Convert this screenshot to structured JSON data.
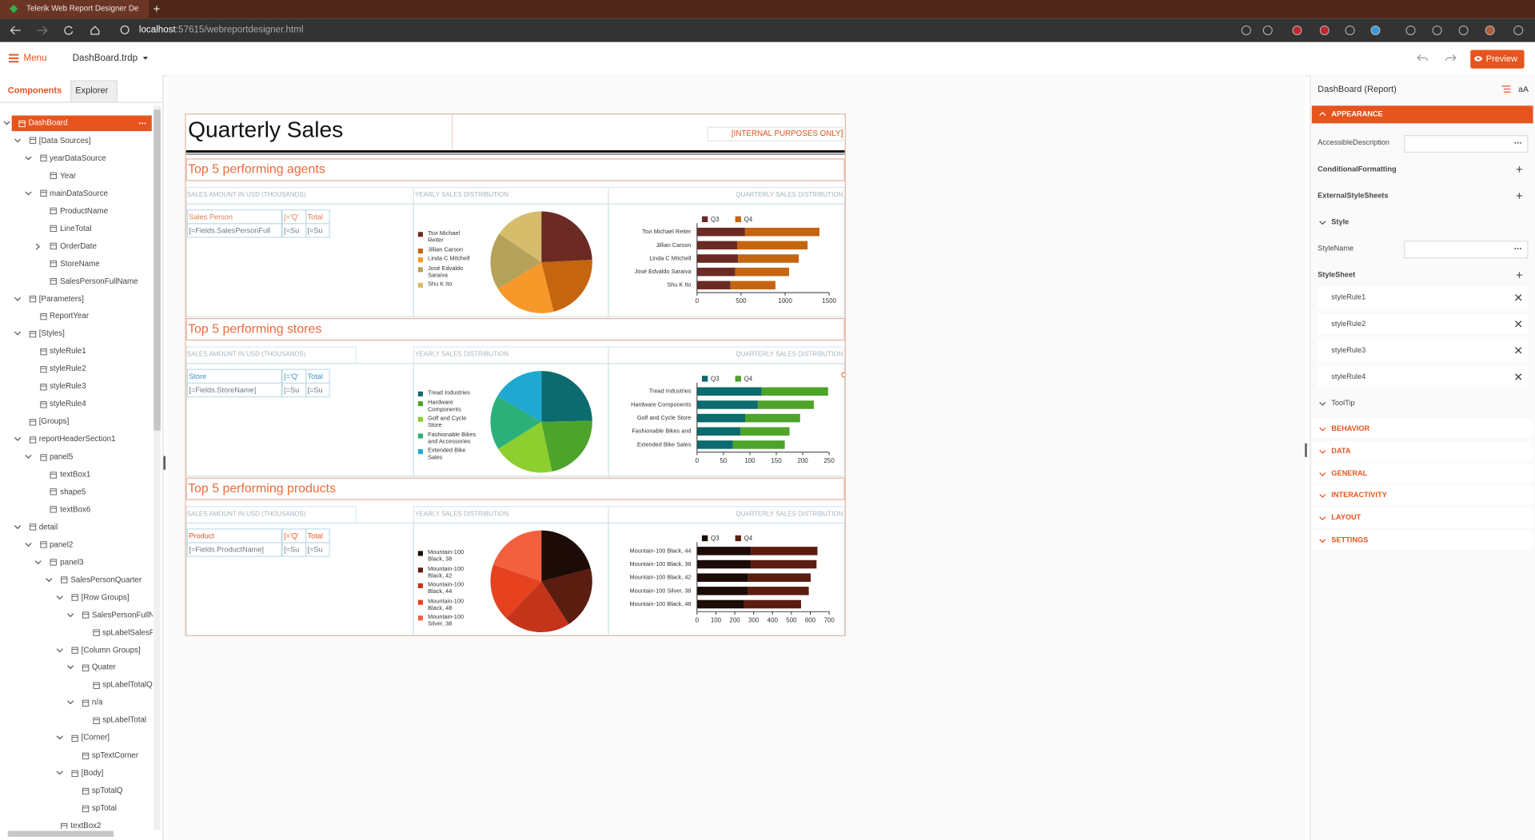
{
  "browser": {
    "tab_title": "Telerik Web Report Designer De",
    "url_host": "localhost",
    "url_path": ":57615/webreportdesigner.html"
  },
  "toolbar": {
    "menu": "Menu",
    "document": "DashBoard.trdp",
    "preview": "Preview"
  },
  "explorer": {
    "tabs": [
      "Components",
      "Explorer"
    ],
    "tree": [
      {
        "label": "DashBoard",
        "children": [
          {
            "label": "[Data Sources]",
            "children": [
              {
                "label": "yearDataSource",
                "children": [
                  {
                    "label": "Year"
                  }
                ]
              },
              {
                "label": "mainDataSource",
                "children": [
                  {
                    "label": "ProductName"
                  },
                  {
                    "label": "LineTotal"
                  },
                  {
                    "label": "OrderDate",
                    "collapsed": true
                  },
                  {
                    "label": "StoreName"
                  },
                  {
                    "label": "SalesPersonFullName"
                  }
                ]
              }
            ]
          },
          {
            "label": "[Parameters]",
            "children": [
              {
                "label": "ReportYear"
              }
            ]
          },
          {
            "label": "[Styles]",
            "children": [
              {
                "label": "styleRule1"
              },
              {
                "label": "styleRule2"
              },
              {
                "label": "styleRule3"
              },
              {
                "label": "styleRule4"
              }
            ]
          },
          {
            "label": "[Groups]"
          },
          {
            "label": "reportHeaderSection1",
            "children": [
              {
                "label": "panel5",
                "children": [
                  {
                    "label": "textBox1"
                  },
                  {
                    "label": "shape5"
                  },
                  {
                    "label": "textBox6"
                  }
                ]
              }
            ]
          },
          {
            "label": "detail",
            "children": [
              {
                "label": "panel2",
                "children": [
                  {
                    "label": "panel3",
                    "children": [
                      {
                        "label": "SalesPersonQuarter",
                        "children": [
                          {
                            "label": "[Row Groups]",
                            "children": [
                              {
                                "label": "SalesPersonFullN",
                                "children": [
                                  {
                                    "label": "spLabelSalesF"
                                  }
                                ]
                              }
                            ]
                          },
                          {
                            "label": "[Column Groups]",
                            "children": [
                              {
                                "label": "Quater",
                                "children": [
                                  {
                                    "label": "spLabelTotalQ"
                                  }
                                ]
                              },
                              {
                                "label": "n/a",
                                "children": [
                                  {
                                    "label": "spLabelTotal"
                                  }
                                ]
                              }
                            ]
                          },
                          {
                            "label": "[Corner]",
                            "children": [
                              {
                                "label": "spTextCorner"
                              }
                            ]
                          },
                          {
                            "label": "[Body]",
                            "children": [
                              {
                                "label": "spTotalQ"
                              },
                              {
                                "label": "spTotal"
                              }
                            ]
                          }
                        ]
                      },
                      {
                        "label": "textBox2"
                      }
                    ]
                  }
                ]
              }
            ]
          }
        ]
      }
    ]
  },
  "report": {
    "title": "Quarterly Sales",
    "notice": "[INTERNAL PURPOSES ONLY]",
    "sections": [
      {
        "heading": "Top 5 performing agents",
        "columns": [
          "SALES AMOUNT IN USD (THOUSANDS)",
          "YEARLY SALES DISTRIBUTION",
          "QUARTERLY SALES DISTRIBUTION"
        ],
        "table": [
          [
            "Sales Person",
            "[='Q'",
            "Total"
          ],
          [
            "[=Fields.SalesPersonFull",
            "[=Su",
            "[=Su"
          ]
        ],
        "pie": {
          "type": "pie",
          "categories": [
            "Tsvi Michael Reiter",
            "Jillian  Carson",
            "Linda C Mitchell",
            "José Edvaldo Saraiva",
            "Shu K Ito"
          ],
          "values": [
            1390,
            1255,
            1155,
            1045,
            890
          ],
          "colors": [
            "#6b2a24",
            "#c5650f",
            "#f7982a",
            "#b4a25a",
            "#d6bd6c"
          ]
        },
        "bar": {
          "type": "bar",
          "categories": [
            "Tsvi Michael Reiter",
            "Jillian  Carson",
            "Linda C Mitchell",
            "José Edvaldo Saraiva",
            "Shu K Ito"
          ],
          "series": [
            {
              "name": "Q3",
              "color": "#6b2a24",
              "values": [
                545,
                455,
                465,
                435,
                380
              ]
            },
            {
              "name": "Q4",
              "color": "#c5650f",
              "values": [
                845,
                800,
                690,
                610,
                510
              ]
            }
          ],
          "xlim": [
            0,
            1500
          ],
          "xticks": [
            0,
            500,
            1000,
            1500
          ]
        }
      },
      {
        "heading": "Top 5 performing stores",
        "columns": [
          "SALES AMOUNT IN USD (THOUSANDS)",
          "YEARLY SALES DISTRIBUTION",
          "QUARTERLY SALES DISTRIBUTION"
        ],
        "table": [
          [
            "Store",
            "[='Q'",
            "Total"
          ],
          [
            "[=Fields.StoreName]",
            "[=Su",
            "[=Su"
          ]
        ],
        "pie": {
          "type": "pie",
          "categories": [
            "Tread Industries",
            "Hardware Components",
            "Golf and Cycle Store",
            "Fashionable Bikes and Accessories",
            "Extended Bike Sales"
          ],
          "values": [
            248,
            221,
            195,
            175,
            166
          ],
          "colors": [
            "#0b6b6e",
            "#4ea42a",
            "#8dcf2f",
            "#2bb07a",
            "#1fa9d2"
          ]
        },
        "bar": {
          "type": "bar",
          "categories": [
            "Tread Industries",
            "Hardware Components",
            "Golf and Cycle Store",
            "Fashionable Bikes and",
            "Extended Bike Sales"
          ],
          "series": [
            {
              "name": "Q3",
              "color": "#0b6b6e",
              "values": [
                122,
                115,
                91,
                82,
                68
              ]
            },
            {
              "name": "Q4",
              "color": "#4ea42a",
              "values": [
                126,
                106,
                104,
                93,
                98
              ]
            }
          ],
          "xlim": [
            0,
            250
          ],
          "xticks": [
            0,
            50,
            100,
            150,
            200,
            250
          ]
        }
      },
      {
        "heading": "Top 5 performing products",
        "columns": [
          "SALES AMOUNT IN USD (THOUSANDS)",
          "YEARLY SALES DISTRIBUTION",
          "QUARTERLY SALES DISTRIBUTION"
        ],
        "table": [
          [
            "Product",
            "[='Q'",
            "Total"
          ],
          [
            "[=Fields.ProductName]",
            "[=Su",
            "[=Su"
          ]
        ],
        "pie": {
          "type": "pie",
          "categories": [
            "Mountain-100 Black, 38",
            "Mountain-100 Black, 42",
            "Mountain-100 Black, 44",
            "Mountain-100 Black, 48",
            "Mountain-100 Silver, 38"
          ],
          "values": [
            633,
            602,
            638,
            551,
            592
          ],
          "colors": [
            "#1c0b07",
            "#5b1d10",
            "#c4341b",
            "#e6421f",
            "#f3603f"
          ]
        },
        "bar": {
          "type": "bar",
          "categories": [
            "Mountain-100 Black, 44",
            "Mountain-100 Black, 38",
            "Mountain-100 Black, 42",
            "Mountain-100 Silver, 38",
            "Mountain-100 Black, 48"
          ],
          "series": [
            {
              "name": "Q3",
              "color": "#1c0b07",
              "values": [
                286,
                286,
                270,
                270,
                250
              ]
            },
            {
              "name": "Q4",
              "color": "#5b1d10",
              "values": [
                352,
                347,
                332,
                322,
                301
              ]
            }
          ],
          "xlim": [
            0,
            700
          ],
          "xticks": [
            0,
            100,
            200,
            300,
            400,
            500,
            600,
            700
          ]
        }
      }
    ]
  },
  "properties": {
    "title": "DashBoard (Report)",
    "font_button": "aA",
    "appearance": "APPEARANCE",
    "accessible_description": "AccessibleDescription",
    "conditional_formatting": "ConditionalFormatting",
    "external_style_sheets": "ExternalStyleSheets",
    "style": "Style",
    "style_name": "StyleName",
    "style_sheet": "StyleSheet",
    "style_rules": [
      "styleRule1",
      "styleRule2",
      "styleRule3",
      "styleRule4"
    ],
    "tooltip": "ToolTip",
    "categories": [
      "BEHAVIOR",
      "DATA",
      "GENERAL",
      "INTERACTIVITY",
      "LAYOUT",
      "SETTINGS"
    ]
  }
}
